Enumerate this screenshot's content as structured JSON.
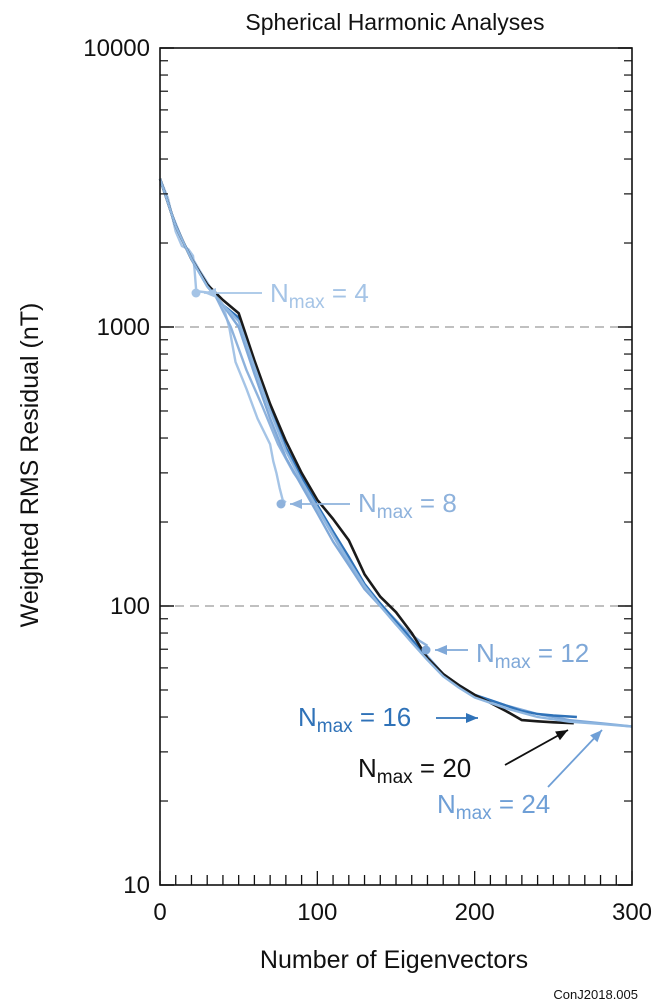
{
  "chart_data": {
    "type": "line",
    "title": "Spherical Harmonic Analyses",
    "xlabel": "Number of Eigenvectors",
    "ylabel": "Weighted RMS Residual (nT)",
    "xlim": [
      0,
      300
    ],
    "ylim": [
      10,
      10000
    ],
    "yscale": "log",
    "xticks": [
      "0",
      "100",
      "200",
      "300"
    ],
    "yticks": [
      "10",
      "100",
      "1000",
      "10000"
    ],
    "grid": "dashed horizontal lines at 100 and 1000",
    "credit": "ConJ2018.005",
    "series": [
      {
        "name": "Nmax = 4",
        "color": "#a5c4e6",
        "points": [
          [
            0,
            3400
          ],
          [
            5,
            2900
          ],
          [
            10,
            2200
          ],
          [
            14,
            1950
          ],
          [
            18,
            1900
          ],
          [
            21,
            1800
          ],
          [
            22,
            1600
          ],
          [
            23,
            1350
          ],
          [
            25,
            1340
          ],
          [
            30,
            1330
          ],
          [
            35,
            1300
          ],
          [
            40,
            1200
          ],
          [
            44,
            1000
          ],
          [
            48,
            750
          ],
          [
            55,
            600
          ],
          [
            62,
            470
          ],
          [
            70,
            380
          ],
          [
            72,
            330
          ],
          [
            74,
            300
          ],
          [
            76,
            265
          ],
          [
            78,
            240
          ],
          [
            80,
            235
          ]
        ]
      },
      {
        "name": "Nmax = 8",
        "color": "#8eb2dc",
        "points": [
          [
            0,
            3400
          ],
          [
            8,
            2500
          ],
          [
            15,
            2000
          ],
          [
            25,
            1600
          ],
          [
            35,
            1300
          ],
          [
            45,
            1000
          ],
          [
            55,
            700
          ],
          [
            65,
            520
          ],
          [
            75,
            380
          ],
          [
            85,
            300
          ],
          [
            95,
            250
          ],
          [
            105,
            200
          ],
          [
            115,
            160
          ],
          [
            125,
            130
          ],
          [
            135,
            110
          ],
          [
            145,
            95
          ],
          [
            155,
            83
          ],
          [
            165,
            75
          ],
          [
            170,
            72
          ]
        ]
      },
      {
        "name": "Nmax = 12",
        "color": "#7fa8d8",
        "points": [
          [
            0,
            3400
          ],
          [
            10,
            2300
          ],
          [
            20,
            1750
          ],
          [
            30,
            1400
          ],
          [
            40,
            1200
          ],
          [
            50,
            1000
          ],
          [
            60,
            680
          ],
          [
            70,
            470
          ],
          [
            80,
            340
          ],
          [
            90,
            270
          ],
          [
            100,
            215
          ],
          [
            110,
            170
          ],
          [
            120,
            140
          ],
          [
            130,
            115
          ],
          [
            140,
            100
          ],
          [
            150,
            86
          ],
          [
            160,
            75
          ],
          [
            170,
            66
          ],
          [
            180,
            57
          ],
          [
            190,
            52
          ],
          [
            200,
            48
          ],
          [
            220,
            44
          ],
          [
            240,
            41
          ],
          [
            260,
            39
          ],
          [
            280,
            38
          ],
          [
            300,
            37
          ]
        ]
      },
      {
        "name": "Nmax = 16",
        "color": "#2f72b8",
        "points": [
          [
            0,
            3400
          ],
          [
            10,
            2300
          ],
          [
            20,
            1750
          ],
          [
            30,
            1400
          ],
          [
            40,
            1200
          ],
          [
            50,
            1080
          ],
          [
            60,
            730
          ],
          [
            70,
            510
          ],
          [
            80,
            370
          ],
          [
            90,
            290
          ],
          [
            100,
            230
          ],
          [
            110,
            185
          ],
          [
            120,
            150
          ],
          [
            130,
            120
          ],
          [
            140,
            102
          ],
          [
            150,
            88
          ],
          [
            160,
            76
          ],
          [
            170,
            65
          ],
          [
            180,
            57
          ],
          [
            190,
            52
          ],
          [
            200,
            48
          ],
          [
            210,
            46
          ],
          [
            220,
            44
          ],
          [
            230,
            42
          ],
          [
            240,
            41
          ],
          [
            250,
            40.5
          ],
          [
            265,
            40
          ]
        ]
      },
      {
        "name": "Nmax = 20",
        "color": "#1a1a1a",
        "points": [
          [
            0,
            3400
          ],
          [
            10,
            2300
          ],
          [
            20,
            1750
          ],
          [
            30,
            1420
          ],
          [
            40,
            1250
          ],
          [
            50,
            1120
          ],
          [
            60,
            760
          ],
          [
            70,
            530
          ],
          [
            80,
            390
          ],
          [
            90,
            300
          ],
          [
            100,
            240
          ],
          [
            110,
            205
          ],
          [
            120,
            172
          ],
          [
            130,
            130
          ],
          [
            140,
            108
          ],
          [
            150,
            95
          ],
          [
            160,
            80
          ],
          [
            170,
            65
          ],
          [
            180,
            57
          ],
          [
            190,
            52
          ],
          [
            200,
            48
          ],
          [
            210,
            45
          ],
          [
            220,
            42
          ],
          [
            230,
            39
          ],
          [
            240,
            38.6
          ],
          [
            250,
            38.3
          ],
          [
            263,
            38
          ]
        ]
      },
      {
        "name": "Nmax = 24",
        "color": "#8eb6e0",
        "points": [
          [
            0,
            3400
          ],
          [
            10,
            2300
          ],
          [
            20,
            1750
          ],
          [
            30,
            1400
          ],
          [
            40,
            1200
          ],
          [
            50,
            1050
          ],
          [
            60,
            720
          ],
          [
            70,
            500
          ],
          [
            80,
            360
          ],
          [
            90,
            280
          ],
          [
            100,
            225
          ],
          [
            110,
            180
          ],
          [
            120,
            145
          ],
          [
            130,
            118
          ],
          [
            140,
            100
          ],
          [
            150,
            86
          ],
          [
            160,
            74
          ],
          [
            170,
            64
          ],
          [
            180,
            56
          ],
          [
            190,
            51
          ],
          [
            200,
            47
          ],
          [
            220,
            43
          ],
          [
            240,
            40
          ],
          [
            260,
            38.5
          ],
          [
            280,
            37.8
          ],
          [
            300,
            37
          ]
        ]
      }
    ],
    "annotations": [
      {
        "base": "N",
        "sub": "max",
        "suffix": " = 4",
        "color": "#a5c4e6"
      },
      {
        "base": "N",
        "sub": "max",
        "suffix": " = 8",
        "color": "#8eb2dc"
      },
      {
        "base": "N",
        "sub": "max",
        "suffix": " = 12",
        "color": "#7fa8d8"
      },
      {
        "base": "N",
        "sub": "max",
        "suffix": " = 16",
        "color": "#2f72b8"
      },
      {
        "base": "N",
        "sub": "max",
        "suffix": " = 20",
        "color": "#111111"
      },
      {
        "base": "N",
        "sub": "max",
        "suffix": " = 24",
        "color": "#6f9fd6"
      }
    ]
  }
}
